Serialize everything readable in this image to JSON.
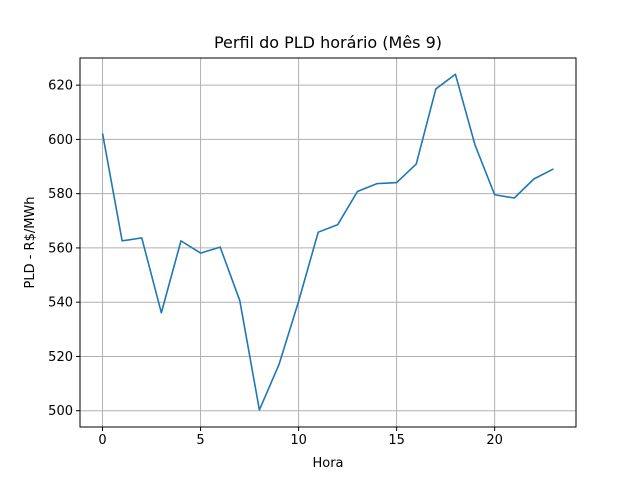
{
  "chart_data": {
    "type": "line",
    "title": "Perfil do PLD horário (Mês 9)",
    "xlabel": "Hora",
    "ylabel": "PLD - R$/MWh",
    "xlim": [
      -1.15,
      24.15
    ],
    "ylim": [
      494.0,
      630.0
    ],
    "xticks": [
      0,
      5,
      10,
      15,
      20
    ],
    "yticks": [
      500,
      520,
      540,
      560,
      580,
      600,
      620
    ],
    "grid": true,
    "series": [
      {
        "color": "#1f77b4",
        "x": [
          0,
          1,
          2,
          3,
          4,
          5,
          6,
          7,
          8,
          9,
          10,
          11,
          12,
          13,
          14,
          15,
          16,
          17,
          18,
          19,
          20,
          21,
          22,
          23
        ],
        "values": [
          602.2,
          562.6,
          563.7,
          536.1,
          562.6,
          558.1,
          560.3,
          540.6,
          500.3,
          517.0,
          540.3,
          565.8,
          568.6,
          580.8,
          583.7,
          584.1,
          590.9,
          618.6,
          624.0,
          597.9,
          579.6,
          578.4,
          585.4,
          589.1
        ]
      }
    ]
  }
}
